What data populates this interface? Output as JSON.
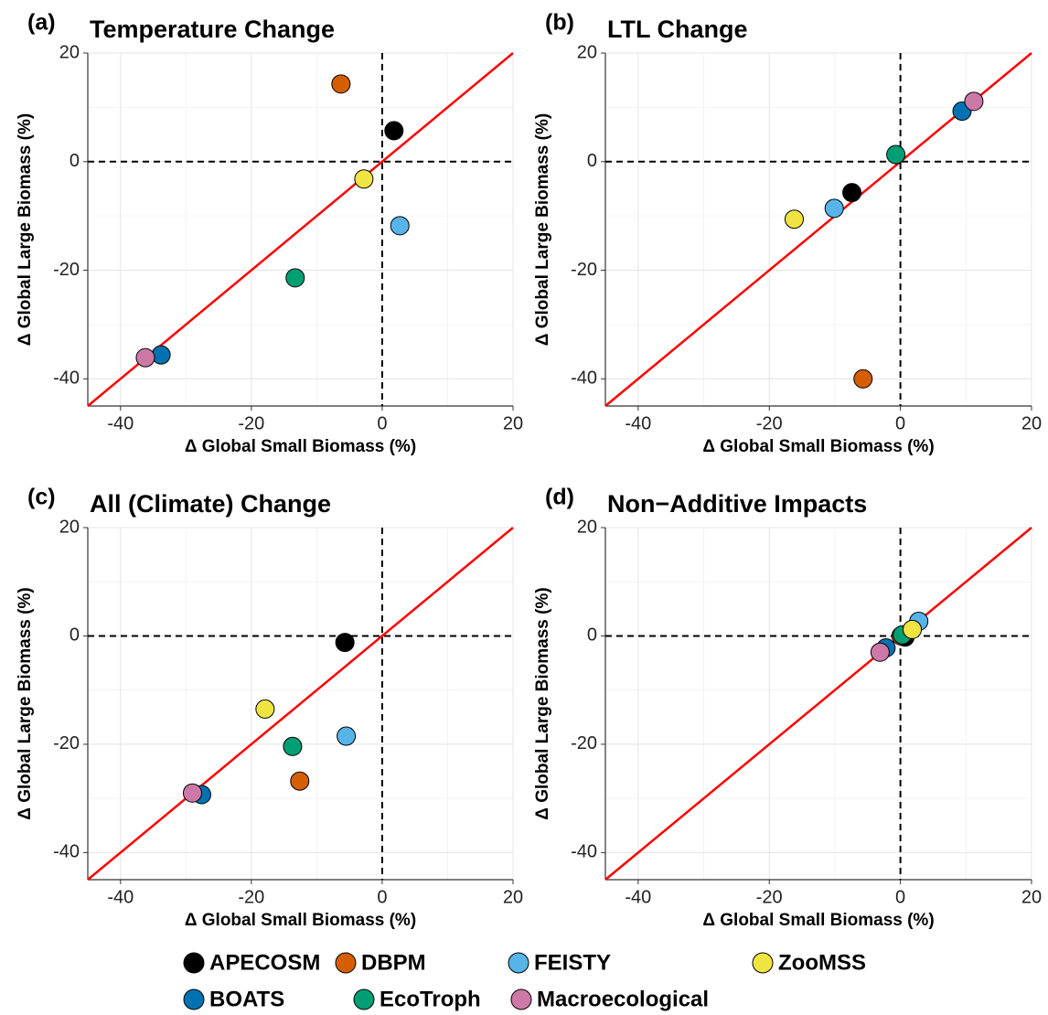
{
  "chart_data": [
    {
      "type": "scatter",
      "label": "(a)",
      "title": "Temperature Change",
      "xlabel": "Δ Global Small Biomass (%)",
      "ylabel": "Δ Global Large Biomass (%)",
      "xlim": [
        -45,
        20
      ],
      "ylim": [
        -45,
        20
      ],
      "xticks": [
        -40,
        -20,
        0,
        20
      ],
      "yticks": [
        -40,
        -20,
        0,
        20
      ],
      "minor_grid": [
        -30,
        -10,
        10
      ],
      "hline": 0,
      "vline": 0,
      "identity_line_color": "#ff0000",
      "series": [
        {
          "name": "APECOSM",
          "color": "#000000",
          "x": [
            1.8
          ],
          "values": [
            5.7
          ]
        },
        {
          "name": "BOATS",
          "color": "#0072B2",
          "x": [
            -33.8
          ],
          "values": [
            -35.6
          ]
        },
        {
          "name": "DBPM",
          "color": "#D55E00",
          "x": [
            -6.3
          ],
          "values": [
            14.3
          ]
        },
        {
          "name": "EcoTroph",
          "color": "#009E73",
          "x": [
            -13.3
          ],
          "values": [
            -21.4
          ]
        },
        {
          "name": "FEISTY",
          "color": "#56B4E9",
          "x": [
            2.7
          ],
          "values": [
            -11.8
          ]
        },
        {
          "name": "Macroecological",
          "color": "#CC79A7",
          "x": [
            -36.2
          ],
          "values": [
            -36.1
          ]
        },
        {
          "name": "ZooMSS",
          "color": "#F0E442",
          "x": [
            -2.8
          ],
          "values": [
            -3.2
          ]
        }
      ]
    },
    {
      "type": "scatter",
      "label": "(b)",
      "title": "LTL Change",
      "xlabel": "Δ Global Small Biomass (%)",
      "ylabel": "Δ Global Large Biomass (%)",
      "xlim": [
        -45,
        20
      ],
      "ylim": [
        -45,
        20
      ],
      "xticks": [
        -40,
        -20,
        0,
        20
      ],
      "yticks": [
        -40,
        -20,
        0,
        20
      ],
      "minor_grid": [
        -30,
        -10,
        10
      ],
      "hline": 0,
      "vline": 0,
      "identity_line_color": "#ff0000",
      "series": [
        {
          "name": "APECOSM",
          "color": "#000000",
          "x": [
            -7.4
          ],
          "values": [
            -5.7
          ]
        },
        {
          "name": "BOATS",
          "color": "#0072B2",
          "x": [
            9.4
          ],
          "values": [
            9.3
          ]
        },
        {
          "name": "DBPM",
          "color": "#D55E00",
          "x": [
            -5.7
          ],
          "values": [
            -40
          ]
        },
        {
          "name": "EcoTroph",
          "color": "#009E73",
          "x": [
            -0.7
          ],
          "values": [
            1.3
          ]
        },
        {
          "name": "FEISTY",
          "color": "#56B4E9",
          "x": [
            -10.1
          ],
          "values": [
            -8.6
          ]
        },
        {
          "name": "Macroecological",
          "color": "#CC79A7",
          "x": [
            11.2
          ],
          "values": [
            11.1
          ]
        },
        {
          "name": "ZooMSS",
          "color": "#F0E442",
          "x": [
            -16.2
          ],
          "values": [
            -10.6
          ]
        }
      ]
    },
    {
      "type": "scatter",
      "label": "(c)",
      "title": "All (Climate) Change",
      "xlabel": "Δ Global Small Biomass (%)",
      "ylabel": "Δ Global Large Biomass (%)",
      "xlim": [
        -45,
        20
      ],
      "ylim": [
        -45,
        20
      ],
      "xticks": [
        -40,
        -20,
        0,
        20
      ],
      "yticks": [
        -40,
        -20,
        0,
        20
      ],
      "minor_grid": [
        -30,
        -10,
        10
      ],
      "hline": 0,
      "vline": 0,
      "identity_line_color": "#ff0000",
      "series": [
        {
          "name": "APECOSM",
          "color": "#000000",
          "x": [
            -5.7
          ],
          "values": [
            -1.2
          ]
        },
        {
          "name": "BOATS",
          "color": "#0072B2",
          "x": [
            -27.6
          ],
          "values": [
            -29.3
          ]
        },
        {
          "name": "DBPM",
          "color": "#D55E00",
          "x": [
            -12.6
          ],
          "values": [
            -26.8
          ]
        },
        {
          "name": "EcoTroph",
          "color": "#009E73",
          "x": [
            -13.7
          ],
          "values": [
            -20.4
          ]
        },
        {
          "name": "FEISTY",
          "color": "#56B4E9",
          "x": [
            -5.5
          ],
          "values": [
            -18.5
          ]
        },
        {
          "name": "Macroecological",
          "color": "#CC79A7",
          "x": [
            -29
          ],
          "values": [
            -29
          ]
        },
        {
          "name": "ZooMSS",
          "color": "#F0E442",
          "x": [
            -17.9
          ],
          "values": [
            -13.5
          ]
        }
      ]
    },
    {
      "type": "scatter",
      "label": "(d)",
      "title": "Non−Additive Impacts",
      "xlabel": "Δ Global Small Biomass (%)",
      "ylabel": "Δ Global Large Biomass (%)",
      "xlim": [
        -45,
        20
      ],
      "ylim": [
        -45,
        20
      ],
      "xticks": [
        -40,
        -20,
        0,
        20
      ],
      "yticks": [
        -40,
        -20,
        0,
        20
      ],
      "minor_grid": [
        -30,
        -10,
        10
      ],
      "hline": 0,
      "vline": 0,
      "identity_line_color": "#ff0000",
      "series": [
        {
          "name": "APECOSM",
          "color": "#000000",
          "x": [
            0.7
          ],
          "values": [
            -0.2
          ]
        },
        {
          "name": "BOATS",
          "color": "#0072B2",
          "x": [
            -2.2
          ],
          "values": [
            -2.2
          ]
        },
        {
          "name": "DBPM",
          "color": "#D55E00",
          "x": [
            0.1
          ],
          "values": [
            0
          ]
        },
        {
          "name": "EcoTroph",
          "color": "#009E73",
          "x": [
            0.3
          ],
          "values": [
            0.2
          ]
        },
        {
          "name": "FEISTY",
          "color": "#56B4E9",
          "x": [
            2.8
          ],
          "values": [
            2.7
          ]
        },
        {
          "name": "Macroecological",
          "color": "#CC79A7",
          "x": [
            -3.1
          ],
          "values": [
            -3.0
          ]
        },
        {
          "name": "ZooMSS",
          "color": "#F0E442",
          "x": [
            1.8
          ],
          "values": [
            1.2
          ]
        }
      ]
    }
  ]
}
